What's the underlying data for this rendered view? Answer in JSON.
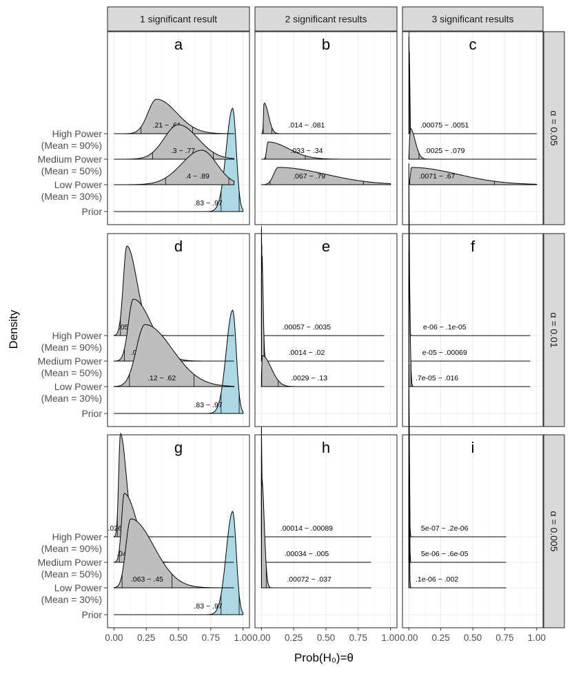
{
  "chart_data": {
    "type": "ridgeline",
    "title": "",
    "xlabel": "Prob(H₀)=θ",
    "ylabel": "Density",
    "xlim": [
      0,
      1
    ],
    "x_ticks": [
      "0.00",
      "0.25",
      "0.50",
      "0.75",
      "1.00"
    ],
    "y_categories": [
      "High Power\n(Mean = 90%)",
      "Medium Power\n(Mean = 50%)",
      "Low Power\n(Mean = 30%)",
      "Prior"
    ],
    "column_facets": [
      "1 significant result",
      "2 significant results",
      "3 significant results"
    ],
    "row_facets": [
      "α = 0.05",
      "α = 0.01",
      "α = 0.005"
    ],
    "colors": {
      "prior_fill": "#add8e6",
      "posterior_fill": "#bebebe",
      "strip_fill": "#d9d9d9",
      "line": "#000000"
    },
    "prior": {
      "mode": 0.92,
      "interval": [
        0.83,
        0.97
      ],
      "label": ".83 − .97"
    },
    "panels": [
      {
        "letter": "a",
        "row": 0,
        "col": 0,
        "xmax": 0.93,
        "ridges": [
          {
            "category": "High Power",
            "mode": 0.33,
            "interval": [
              0.21,
              0.61
            ],
            "label": ".21 − .61"
          },
          {
            "category": "Medium Power",
            "mode": 0.5,
            "interval": [
              0.3,
              0.77
            ],
            "label": ".3 − .77"
          },
          {
            "category": "Low Power",
            "mode": 0.68,
            "interval": [
              0.4,
              0.89
            ],
            "label": ".4 − .89"
          }
        ]
      },
      {
        "letter": "b",
        "row": 0,
        "col": 1,
        "xmax": 1.0,
        "ridges": [
          {
            "category": "High Power",
            "mode": 0.02,
            "interval": [
              0.014,
              0.081
            ],
            "label": ".014 − .081"
          },
          {
            "category": "Medium Power",
            "mode": 0.05,
            "interval": [
              0.033,
              0.34
            ],
            "label": ".033 − .34"
          },
          {
            "category": "Low Power",
            "mode": 0.13,
            "interval": [
              0.067,
              0.79
            ],
            "label": ".067 − .79"
          }
        ]
      },
      {
        "letter": "c",
        "row": 0,
        "col": 2,
        "xmax": 1.0,
        "ridges": [
          {
            "category": "High Power",
            "mode": 0.002,
            "interval": [
              0.00075,
              0.0051
            ],
            "label": ".00075 − .0051"
          },
          {
            "category": "Medium Power",
            "mode": 0.01,
            "interval": [
              0.0025,
              0.079
            ],
            "label": ".0025 − .079"
          },
          {
            "category": "Low Power",
            "mode": 0.02,
            "interval": [
              0.0071,
              0.67
            ],
            "label": ".0071 − .67"
          }
        ]
      },
      {
        "letter": "d",
        "row": 1,
        "col": 0,
        "xmax": 0.93,
        "ridges": [
          {
            "category": "High Power",
            "mode": 0.1,
            "interval": [
              0.05,
              0.24
            ],
            "label": ".05 − .24"
          },
          {
            "category": "Medium Power",
            "mode": 0.15,
            "interval": [
              0.081,
              0.4
            ],
            "label": ".081 − .4"
          },
          {
            "category": "Low Power",
            "mode": 0.24,
            "interval": [
              0.12,
              0.62
            ],
            "label": ".12 − .62"
          }
        ]
      },
      {
        "letter": "e",
        "row": 1,
        "col": 1,
        "xmax": 0.95,
        "ridges": [
          {
            "category": "High Power",
            "mode": 0.001,
            "interval": [
              0.00057,
              0.0035
            ],
            "label": ".00057 − .0035"
          },
          {
            "category": "Medium Power",
            "mode": 0.003,
            "interval": [
              0.0014,
              0.02
            ],
            "label": ".0014 − .02"
          },
          {
            "category": "Low Power",
            "mode": 0.006,
            "interval": [
              0.0029,
              0.13
            ],
            "label": ".0029 − .13"
          }
        ]
      },
      {
        "letter": "f",
        "row": 1,
        "col": 2,
        "xmax": 0.95,
        "ridges": [
          {
            "category": "High Power",
            "mode": 0.0,
            "interval": [
              0,
              0
            ],
            "label": "e-06 − .1e-05"
          },
          {
            "category": "Medium Power",
            "mode": 0.0,
            "interval": [
              0,
              0.00069
            ],
            "label": "e-05 − .00069"
          },
          {
            "category": "Low Power",
            "mode": 0.0,
            "interval": [
              0,
              0.016
            ],
            "label": ".7e-05 − .016"
          }
        ]
      },
      {
        "letter": "g",
        "row": 2,
        "col": 0,
        "xmax": 0.93,
        "ridges": [
          {
            "category": "High Power",
            "mode": 0.05,
            "interval": [
              0.026,
              0.13
            ],
            "label": ".026 − .13"
          },
          {
            "category": "Medium Power",
            "mode": 0.08,
            "interval": [
              0.042,
              0.25
            ],
            "label": ".042 − .25"
          },
          {
            "category": "Low Power",
            "mode": 0.13,
            "interval": [
              0.063,
              0.45
            ],
            "label": ".063 − .45"
          }
        ]
      },
      {
        "letter": "h",
        "row": 2,
        "col": 1,
        "xmax": 0.85,
        "ridges": [
          {
            "category": "High Power",
            "mode": 0.0004,
            "interval": [
              0.00014,
              0.00089
            ],
            "label": ".00014 − .00089"
          },
          {
            "category": "Medium Power",
            "mode": 0.001,
            "interval": [
              0.00034,
              0.005
            ],
            "label": ".00034 − .005"
          },
          {
            "category": "Low Power",
            "mode": 0.002,
            "interval": [
              0.00072,
              0.037
            ],
            "label": ".00072 − .037"
          }
        ]
      },
      {
        "letter": "i",
        "row": 2,
        "col": 2,
        "xmax": 0.76,
        "ridges": [
          {
            "category": "High Power",
            "mode": 0.0,
            "interval": [
              0,
              0
            ],
            "label": "5e-07 − .2e-06"
          },
          {
            "category": "Medium Power",
            "mode": 0.0,
            "interval": [
              0,
              0
            ],
            "label": "5e-06 − .6e-05"
          },
          {
            "category": "Low Power",
            "mode": 0.0,
            "interval": [
              0,
              0.002
            ],
            "label": ".1e-06 − .002"
          }
        ]
      }
    ]
  }
}
